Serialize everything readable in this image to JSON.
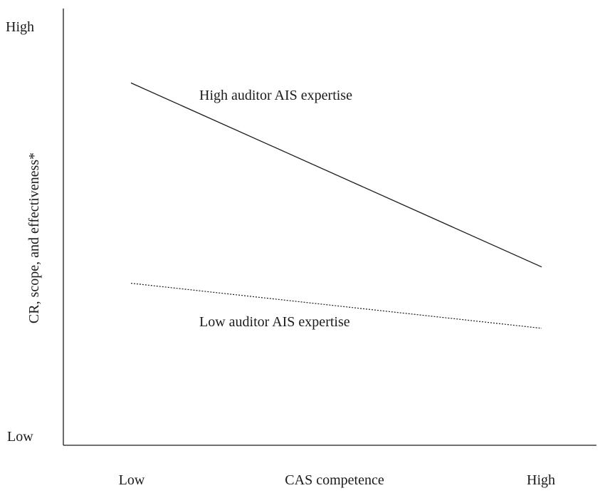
{
  "chart_data": {
    "type": "line",
    "categories": [
      "Low",
      "High"
    ],
    "xlabel": "CAS competence",
    "ylabel": "CR, scope, and effectiveness*",
    "y_tick_labels": {
      "top": "High",
      "bottom": "Low"
    },
    "ylim": [
      0,
      1
    ],
    "grid": false,
    "legend": "none",
    "series": [
      {
        "name": "High auditor AIS expertise",
        "values": [
          0.86,
          0.41
        ],
        "line_style": "solid",
        "color": "#1a1a1a"
      },
      {
        "name": "Low auditor AIS expertise",
        "values": [
          0.37,
          0.26
        ],
        "line_style": "dotted",
        "color": "#1a1a1a"
      }
    ]
  }
}
